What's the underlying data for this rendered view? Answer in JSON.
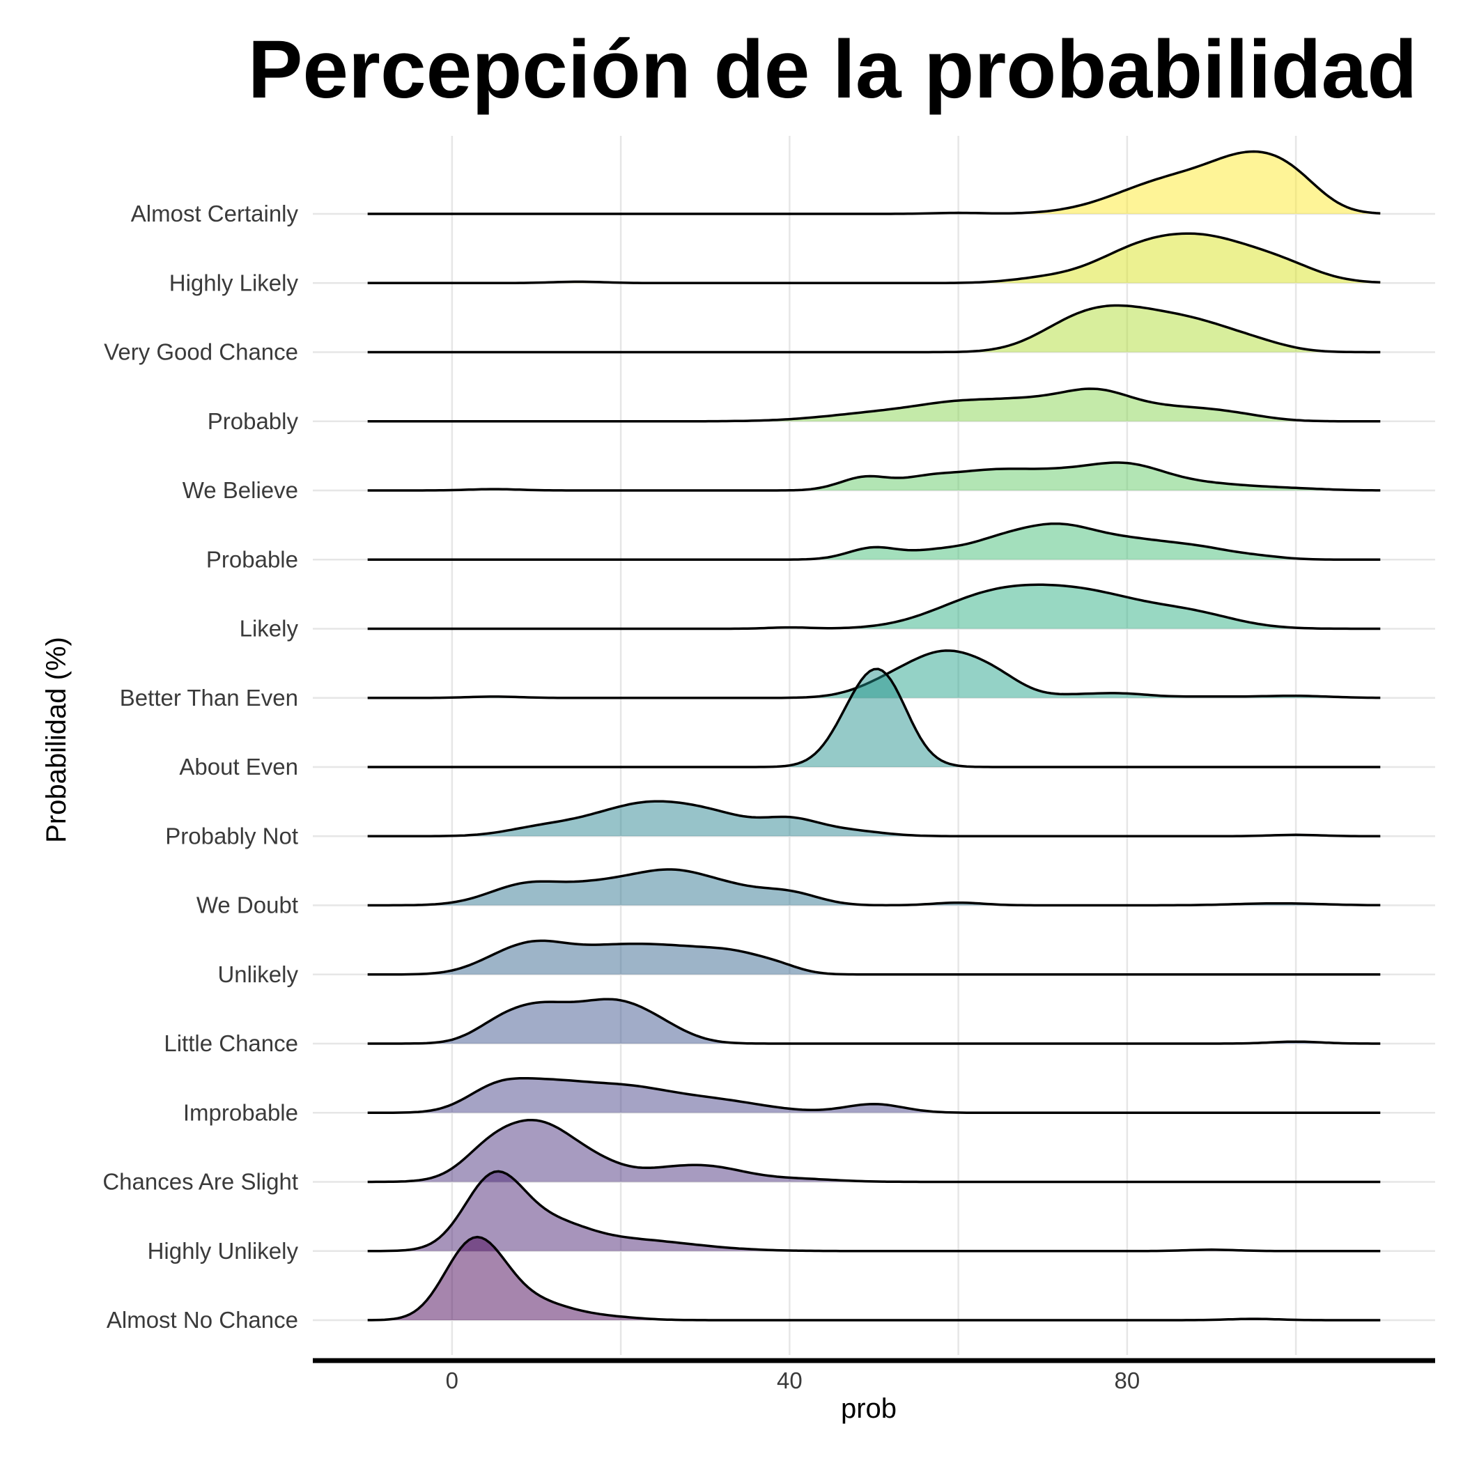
{
  "chart_data": {
    "type": "ridgeline",
    "title": "Percepción de la probabilidad",
    "xlabel": "prob",
    "ylabel": "Probabilidad (%)",
    "xlim": [
      -16.5,
      116.5
    ],
    "density_range": [
      -10,
      110
    ],
    "xticks": [
      0,
      40,
      80
    ],
    "grid": true,
    "legend": "none",
    "fill_opacity": 0.48,
    "series": [
      {
        "name": "Almost Certainly",
        "color": "#fde725",
        "bumps": [
          [
            60,
            3,
            1.5
          ],
          [
            82,
            6,
            22
          ],
          [
            88,
            6,
            38
          ],
          [
            95,
            4.5,
            62
          ],
          [
            100,
            3.5,
            30
          ]
        ]
      },
      {
        "name": "Highly Likely",
        "color": "#d8e219",
        "bumps": [
          [
            15,
            3,
            2
          ],
          [
            70,
            4,
            6
          ],
          [
            80,
            5,
            25
          ],
          [
            89,
            7,
            68
          ],
          [
            99,
            4,
            12
          ]
        ]
      },
      {
        "name": "Very Good Chance",
        "color": "#addc30",
        "bumps": [
          [
            73,
            4.5,
            28
          ],
          [
            79,
            5,
            48
          ],
          [
            88,
            5.5,
            42
          ],
          [
            96,
            3.5,
            6
          ]
        ]
      },
      {
        "name": "Probably",
        "color": "#84d44b",
        "bumps": [
          [
            52,
            7,
            14
          ],
          [
            61,
            5,
            22
          ],
          [
            68,
            4,
            18
          ],
          [
            76,
            4.5,
            44
          ],
          [
            86,
            5,
            18
          ],
          [
            93,
            4,
            7
          ]
        ]
      },
      {
        "name": "We Believe",
        "color": "#5ec962",
        "bumps": [
          [
            5,
            3,
            2
          ],
          [
            49,
            3,
            20
          ],
          [
            56,
            3,
            12
          ],
          [
            63,
            5,
            26
          ],
          [
            72,
            5,
            22
          ],
          [
            80,
            4.5,
            32
          ],
          [
            89,
            6,
            10
          ],
          [
            100,
            4,
            2
          ]
        ]
      },
      {
        "name": "Probable",
        "color": "#3fbc73",
        "bumps": [
          [
            50,
            3,
            18
          ],
          [
            57,
            3,
            10
          ],
          [
            64,
            4,
            20
          ],
          [
            72,
            5,
            50
          ],
          [
            81,
            4,
            18
          ],
          [
            88,
            4.5,
            18
          ],
          [
            96,
            3,
            3
          ]
        ]
      },
      {
        "name": "Likely",
        "color": "#28ae80",
        "bumps": [
          [
            40,
            2.5,
            2
          ],
          [
            62,
            6,
            30
          ],
          [
            71,
            7,
            50
          ],
          [
            78,
            5,
            16
          ],
          [
            87,
            5.5,
            24
          ]
        ]
      },
      {
        "name": "Better Than Even",
        "color": "#1fa088",
        "bumps": [
          [
            5,
            3,
            2
          ],
          [
            52,
            4,
            20
          ],
          [
            59,
            4.5,
            65
          ],
          [
            65,
            3,
            15
          ],
          [
            75,
            4,
            5
          ],
          [
            80,
            3,
            4
          ],
          [
            89,
            5,
            2
          ],
          [
            100,
            4,
            3
          ]
        ]
      },
      {
        "name": "About Even",
        "color": "#21918c",
        "bumps": [
          [
            48,
            3,
            20
          ],
          [
            50,
            3.5,
            110
          ],
          [
            52,
            2.5,
            30
          ]
        ]
      },
      {
        "name": "Probably Not",
        "color": "#26828e",
        "bumps": [
          [
            10,
            4,
            10
          ],
          [
            18,
            5,
            22
          ],
          [
            25,
            5,
            40
          ],
          [
            32,
            4,
            20
          ],
          [
            40,
            3.5,
            24
          ],
          [
            47,
            4,
            8
          ],
          [
            100,
            3,
            2
          ]
        ]
      },
      {
        "name": "We Doubt",
        "color": "#2c728e",
        "bumps": [
          [
            9,
            4.5,
            32
          ],
          [
            17,
            4,
            18
          ],
          [
            26,
            5.5,
            52
          ],
          [
            34,
            3.5,
            10
          ],
          [
            40,
            3.5,
            18
          ],
          [
            60,
            3,
            4
          ],
          [
            98,
            5,
            3
          ]
        ]
      },
      {
        "name": "Unlikely",
        "color": "#33638d",
        "bumps": [
          [
            5,
            3.5,
            12
          ],
          [
            10,
            4,
            40
          ],
          [
            18,
            4.5,
            30
          ],
          [
            26,
            5,
            35
          ],
          [
            34,
            4,
            25
          ],
          [
            39,
            2.5,
            6
          ]
        ]
      },
      {
        "name": "Little Chance",
        "color": "#3b528b",
        "bumps": [
          [
            5,
            3,
            15
          ],
          [
            10,
            4,
            50
          ],
          [
            19,
            4.5,
            60
          ],
          [
            25,
            3.5,
            13
          ],
          [
            100,
            3,
            3
          ]
        ]
      },
      {
        "name": "Improbable",
        "color": "#433e85",
        "bumps": [
          [
            5,
            3.5,
            30
          ],
          [
            11,
            4.5,
            35
          ],
          [
            20,
            5.5,
            35
          ],
          [
            31,
            6,
            18
          ],
          [
            50,
            3.5,
            13
          ]
        ]
      },
      {
        "name": "Chances Are Slight",
        "color": "#472d7b",
        "bumps": [
          [
            4,
            3,
            20
          ],
          [
            10,
            5,
            90
          ],
          [
            18,
            3,
            10
          ],
          [
            25,
            4,
            15
          ],
          [
            31,
            4,
            18
          ],
          [
            40,
            5,
            5
          ]
        ]
      },
      {
        "name": "Highly Unlikely",
        "color": "#482071",
        "bumps": [
          [
            5,
            3.5,
            110
          ],
          [
            12,
            4,
            30
          ],
          [
            20,
            8,
            18
          ],
          [
            90,
            3,
            2
          ]
        ]
      },
      {
        "name": "Almost No Chance",
        "color": "#440154",
        "bumps": [
          [
            1,
            3,
            55
          ],
          [
            4,
            3.2,
            80
          ],
          [
            10,
            4,
            25
          ],
          [
            18,
            4,
            5
          ],
          [
            95,
            3,
            2
          ]
        ]
      }
    ]
  }
}
